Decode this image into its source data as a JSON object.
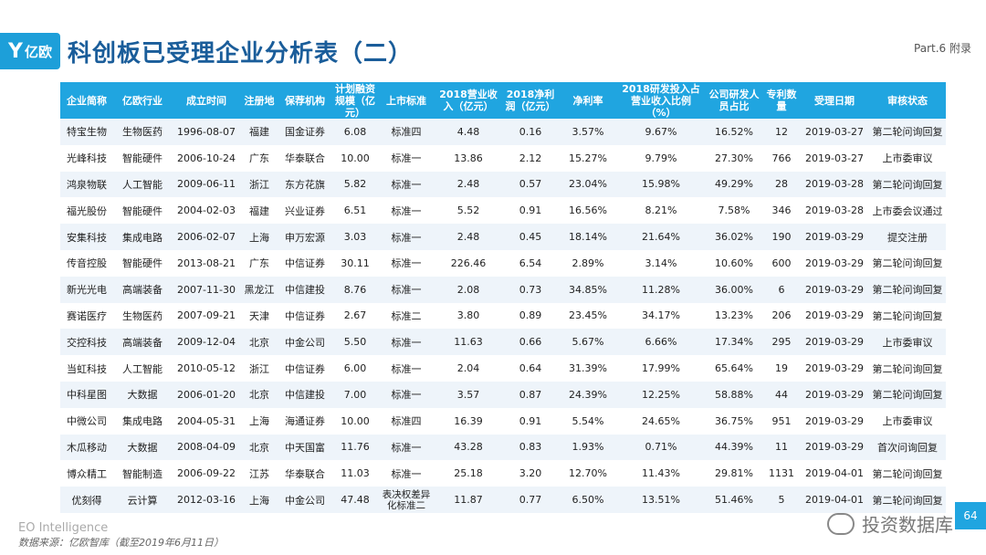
{
  "header": {
    "logo_text": "亿欧",
    "title": "科创板已受理企业分析表（二）",
    "part": "Part.6 附录"
  },
  "table": {
    "columns": [
      "企业简称",
      "亿欧行业",
      "成立时间",
      "注册地",
      "保荐机构",
      "计划融资规模（亿元）",
      "上市标准",
      "2018营业收入（亿元）",
      "2018净利润（亿元）",
      "净利率",
      "2018研发投入占营业收入比例（%）",
      "公司研发人员占比",
      "专利数量",
      "受理日期",
      "审核状态"
    ],
    "rows": [
      [
        "特宝生物",
        "生物医药",
        "1996-08-07",
        "福建",
        "国金证券",
        "6.08",
        "标准四",
        "4.48",
        "0.16",
        "3.57%",
        "9.67%",
        "16.52%",
        "12",
        "2019-03-27",
        "第二轮问询回复"
      ],
      [
        "光峰科技",
        "智能硬件",
        "2006-10-24",
        "广东",
        "华泰联合",
        "10.00",
        "标准一",
        "13.86",
        "2.12",
        "15.27%",
        "9.79%",
        "27.30%",
        "766",
        "2019-03-27",
        "上市委审议"
      ],
      [
        "鸿泉物联",
        "人工智能",
        "2009-06-11",
        "浙江",
        "东方花旗",
        "5.82",
        "标准一",
        "2.48",
        "0.57",
        "23.04%",
        "15.98%",
        "49.29%",
        "28",
        "2019-03-28",
        "第二轮问询回复"
      ],
      [
        "福光股份",
        "智能硬件",
        "2004-02-03",
        "福建",
        "兴业证券",
        "6.51",
        "标准一",
        "5.52",
        "0.91",
        "16.56%",
        "8.21%",
        "7.58%",
        "346",
        "2019-03-28",
        "上市委会议通过"
      ],
      [
        "安集科技",
        "集成电路",
        "2006-02-07",
        "上海",
        "申万宏源",
        "3.03",
        "标准一",
        "2.48",
        "0.45",
        "18.14%",
        "21.64%",
        "36.02%",
        "190",
        "2019-03-29",
        "提交注册"
      ],
      [
        "传音控股",
        "智能硬件",
        "2013-08-21",
        "广东",
        "中信证券",
        "30.11",
        "标准一",
        "226.46",
        "6.54",
        "2.89%",
        "3.14%",
        "10.60%",
        "600",
        "2019-03-29",
        "第二轮问询回复"
      ],
      [
        "新光光电",
        "高端装备",
        "2007-11-30",
        "黑龙江",
        "中信建投",
        "8.76",
        "标准一",
        "2.08",
        "0.73",
        "34.85%",
        "11.28%",
        "36.00%",
        "6",
        "2019-03-29",
        "第二轮问询回复"
      ],
      [
        "赛诺医疗",
        "生物医药",
        "2007-09-21",
        "天津",
        "中信证券",
        "2.67",
        "标准二",
        "3.80",
        "0.89",
        "23.45%",
        "34.17%",
        "13.23%",
        "206",
        "2019-03-29",
        "第二轮问询回复"
      ],
      [
        "交控科技",
        "高端装备",
        "2009-12-04",
        "北京",
        "中金公司",
        "5.50",
        "标准一",
        "11.63",
        "0.66",
        "5.67%",
        "6.66%",
        "17.34%",
        "295",
        "2019-03-29",
        "上市委审议"
      ],
      [
        "当虹科技",
        "人工智能",
        "2010-05-12",
        "浙江",
        "中信证券",
        "6.00",
        "标准一",
        "2.04",
        "0.64",
        "31.39%",
        "17.99%",
        "65.64%",
        "19",
        "2019-03-29",
        "第二轮问询回复"
      ],
      [
        "中科星图",
        "大数据",
        "2006-01-20",
        "北京",
        "中信建投",
        "7.00",
        "标准一",
        "3.57",
        "0.87",
        "24.39%",
        "12.25%",
        "58.88%",
        "44",
        "2019-03-29",
        "第二轮问询回复"
      ],
      [
        "中微公司",
        "集成电路",
        "2004-05-31",
        "上海",
        "海通证券",
        "10.00",
        "标准四",
        "16.39",
        "0.91",
        "5.54%",
        "24.65%",
        "36.75%",
        "951",
        "2019-03-29",
        "上市委审议"
      ],
      [
        "木瓜移动",
        "大数据",
        "2008-04-09",
        "北京",
        "中天国富",
        "11.76",
        "标准一",
        "43.28",
        "0.83",
        "1.93%",
        "0.71%",
        "44.39%",
        "11",
        "2019-03-29",
        "首次问询回复"
      ],
      [
        "博众精工",
        "智能制造",
        "2006-09-22",
        "江苏",
        "华泰联合",
        "11.03",
        "标准一",
        "25.18",
        "3.20",
        "12.70%",
        "11.43%",
        "29.81%",
        "1131",
        "2019-04-01",
        "第二轮问询回复"
      ],
      [
        "优刻得",
        "云计算",
        "2012-03-16",
        "上海",
        "中金公司",
        "47.48",
        "表决权差异化标准二",
        "11.87",
        "0.77",
        "6.50%",
        "13.51%",
        "51.46%",
        "5",
        "2019-04-01",
        "第二轮问询回复"
      ]
    ]
  },
  "footer": {
    "brand": "EO Intelligence",
    "source": "数据来源：亿欧智库（截至2019年6月11日）",
    "watermark": "投资数据库",
    "page_number": "64"
  }
}
